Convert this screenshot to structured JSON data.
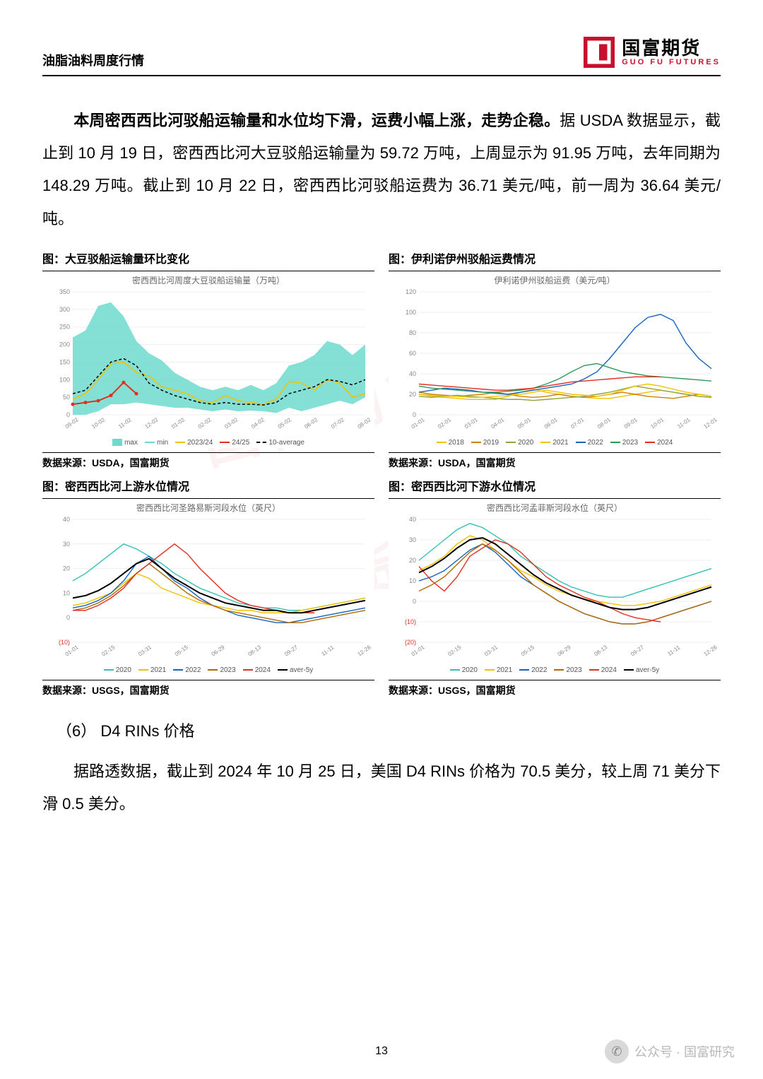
{
  "header": {
    "title": "油脂油料周度行情"
  },
  "logo": {
    "cn": "国富期货",
    "en": "GUO FU FUTURES",
    "color": "#c8102e"
  },
  "para1": {
    "bold": "本周密西西比河驳船运输量和水位均下滑，运费小幅上涨，走势企稳。",
    "rest": "据 USDA 数据显示，截止到 10 月 19 日，密西西比河大豆驳船运输量为 59.72 万吨，上周显示为 91.95 万吨，去年同期为 148.29 万吨。截止到 10 月 22 日，密西西比河驳船运费为 36.71 美元/吨，前一周为 36.64 美元/吨。"
  },
  "charts": {
    "c1": {
      "title": "图：大豆驳船运输量环比变化",
      "subtitle": "密西西比河周度大豆驳船运输量（万吨）",
      "source": "数据来源：USDA，国富期货",
      "type": "area+line",
      "ylim": [
        0,
        350
      ],
      "ystep": 50,
      "xticks": [
        "09-02",
        "10-02",
        "11-02",
        "12-02",
        "01-02",
        "02-02",
        "03-02",
        "04-02",
        "05-02",
        "06-02",
        "07-02",
        "08-02"
      ],
      "colors": {
        "max_fill": "#6fd9cc",
        "min_line": "#6fd9cc",
        "y2023_24": "#f2c200",
        "y2024_25": "#e03020",
        "avg10": "#000000"
      },
      "series": {
        "max": [
          220,
          240,
          310,
          320,
          280,
          210,
          175,
          155,
          120,
          100,
          80,
          70,
          80,
          70,
          85,
          70,
          90,
          140,
          150,
          170,
          210,
          200,
          170,
          200
        ],
        "min": [
          0,
          0,
          10,
          30,
          30,
          35,
          30,
          25,
          20,
          20,
          15,
          10,
          15,
          10,
          12,
          10,
          5,
          20,
          10,
          20,
          30,
          40,
          30,
          50
        ],
        "y2023_24": [
          45,
          60,
          100,
          145,
          150,
          120,
          110,
          80,
          70,
          60,
          40,
          35,
          55,
          40,
          35,
          30,
          45,
          95,
          90,
          70,
          100,
          90,
          50,
          60
        ],
        "y2024_25": [
          30,
          35,
          40,
          55,
          92,
          60
        ],
        "avg10": [
          60,
          70,
          110,
          150,
          160,
          140,
          90,
          70,
          55,
          45,
          35,
          30,
          35,
          30,
          30,
          28,
          35,
          60,
          70,
          80,
          100,
          95,
          85,
          100
        ]
      },
      "legend": [
        {
          "label": "max",
          "style": "box",
          "color": "#6fd9cc"
        },
        {
          "label": "min",
          "style": "line",
          "color": "#6fd9cc"
        },
        {
          "label": "2023/24",
          "style": "line",
          "color": "#f2c200"
        },
        {
          "label": "24/25",
          "style": "dot-line",
          "color": "#e03020"
        },
        {
          "label": "10-average",
          "style": "dash",
          "color": "#000000"
        }
      ]
    },
    "c2": {
      "title": "图：伊利诺伊州驳船运费情况",
      "subtitle": "伊利诺伊州驳船运费（美元/吨）",
      "source": "数据来源：USDA，国富期货",
      "type": "line",
      "ylim": [
        0,
        120
      ],
      "ystep": 20,
      "xticks": [
        "01-01",
        "02-01",
        "03-01",
        "04-01",
        "05-01",
        "06-01",
        "07-01",
        "08-01",
        "09-01",
        "10-01",
        "11-01",
        "12-01"
      ],
      "colors": {
        "2018": "#f2c200",
        "2019": "#cc8400",
        "2020": "#8fa63b",
        "2021": "#f2c200",
        "2022": "#1564c0",
        "2023": "#2e9b5a",
        "2024": "#e03020"
      },
      "series": {
        "2018": [
          20,
          18,
          17,
          16,
          15,
          15,
          15,
          18,
          22,
          25,
          22,
          20,
          18,
          17,
          16,
          16,
          18,
          20,
          22,
          24,
          22,
          20,
          18,
          17
        ],
        "2019": [
          22,
          20,
          19,
          18,
          19,
          20,
          22,
          20,
          18,
          17,
          18,
          20,
          18,
          17,
          18,
          20,
          22,
          20,
          18,
          17,
          16,
          18,
          20,
          18
        ],
        "2020": [
          18,
          17,
          18,
          19,
          18,
          17,
          16,
          15,
          15,
          14,
          15,
          16,
          17,
          18,
          20,
          22,
          25,
          28,
          26,
          24,
          22,
          20,
          18,
          17
        ],
        "2021": [
          20,
          19,
          18,
          18,
          17,
          17,
          18,
          19,
          20,
          22,
          24,
          22,
          20,
          19,
          18,
          20,
          24,
          28,
          30,
          28,
          25,
          22,
          20,
          18
        ],
        "2022": [
          22,
          24,
          26,
          25,
          24,
          22,
          21,
          20,
          22,
          24,
          26,
          28,
          30,
          35,
          42,
          55,
          70,
          85,
          95,
          98,
          92,
          70,
          55,
          45
        ],
        "2023": [
          28,
          26,
          25,
          24,
          23,
          22,
          22,
          23,
          24,
          26,
          30,
          35,
          42,
          48,
          50,
          46,
          42,
          40,
          38,
          37,
          36,
          35,
          34,
          33
        ],
        "2024": [
          30,
          29,
          28,
          27,
          26,
          25,
          24,
          24,
          25,
          26,
          28,
          30,
          32,
          33,
          34,
          35,
          36,
          37,
          37,
          37
        ]
      },
      "legend": [
        {
          "label": "2018",
          "color": "#f2c200"
        },
        {
          "label": "2019",
          "color": "#cc8400"
        },
        {
          "label": "2020",
          "color": "#8fa63b"
        },
        {
          "label": "2021",
          "color": "#f2c200"
        },
        {
          "label": "2022",
          "color": "#1564c0"
        },
        {
          "label": "2023",
          "color": "#2e9b5a"
        },
        {
          "label": "2024",
          "color": "#e03020"
        }
      ]
    },
    "c3": {
      "title": "图：密西西比河上游水位情况",
      "subtitle": "密西西比河圣路易斯河段水位（英尺）",
      "source": "数据来源：USGS，国富期货",
      "type": "line",
      "ylim": [
        -10,
        40
      ],
      "ystep": 10,
      "xticks": [
        "01-01",
        "02-15",
        "03-31",
        "05-15",
        "06-29",
        "08-13",
        "09-27",
        "11-11",
        "12-26"
      ],
      "colors": {
        "2020": "#35c0b5",
        "2021": "#f2c200",
        "2022": "#1564c0",
        "2023": "#b06a00",
        "2024": "#e03020",
        "avg5": "#000000"
      },
      "series": {
        "2020": [
          15,
          18,
          22,
          26,
          30,
          28,
          25,
          22,
          18,
          15,
          12,
          10,
          8,
          6,
          5,
          4,
          4,
          3,
          3,
          4,
          5,
          6,
          7,
          8
        ],
        "2021": [
          5,
          6,
          8,
          10,
          14,
          18,
          16,
          12,
          10,
          8,
          6,
          5,
          4,
          3,
          3,
          2,
          2,
          2,
          3,
          4,
          5,
          6,
          7,
          8
        ],
        "2022": [
          4,
          5,
          7,
          10,
          15,
          22,
          25,
          20,
          15,
          12,
          8,
          5,
          3,
          1,
          0,
          -1,
          -2,
          -2,
          -1,
          0,
          1,
          2,
          3,
          4
        ],
        "2023": [
          3,
          4,
          6,
          9,
          13,
          18,
          22,
          18,
          14,
          10,
          7,
          5,
          3,
          2,
          1,
          0,
          -1,
          -2,
          -2,
          -1,
          0,
          1,
          2,
          3
        ],
        "2024": [
          3,
          3,
          5,
          8,
          12,
          18,
          22,
          26,
          30,
          26,
          20,
          15,
          10,
          7,
          5,
          4,
          3,
          2,
          2,
          2
        ],
        "avg5": [
          8,
          9,
          11,
          14,
          18,
          22,
          24,
          20,
          16,
          13,
          10,
          8,
          6,
          5,
          4,
          3,
          3,
          2,
          2,
          3,
          4,
          5,
          6,
          7
        ]
      },
      "legend": [
        {
          "label": "2020",
          "color": "#35c0b5"
        },
        {
          "label": "2021",
          "color": "#f2c200"
        },
        {
          "label": "2022",
          "color": "#1564c0"
        },
        {
          "label": "2023",
          "color": "#b06a00"
        },
        {
          "label": "2024",
          "color": "#e03020"
        },
        {
          "label": "aver-5y",
          "color": "#000000"
        }
      ]
    },
    "c4": {
      "title": "图：密西西比河下游水位情况",
      "subtitle": "密西西比河孟菲斯河段水位（英尺）",
      "source": "数据来源：USGS，国富期货",
      "type": "line",
      "ylim": [
        -20,
        40
      ],
      "ystep": 10,
      "xticks": [
        "01-01",
        "02-15",
        "03-31",
        "05-15",
        "06-29",
        "08-13",
        "09-27",
        "11-11",
        "12-26"
      ],
      "colors": {
        "2020": "#35c0b5",
        "2021": "#f2c200",
        "2022": "#1564c0",
        "2023": "#b06a00",
        "2024": "#e03020",
        "avg5": "#000000"
      },
      "series": {
        "2020": [
          20,
          25,
          30,
          35,
          38,
          36,
          32,
          28,
          22,
          18,
          14,
          10,
          7,
          5,
          3,
          2,
          2,
          4,
          6,
          8,
          10,
          12,
          14,
          16
        ],
        "2021": [
          15,
          18,
          22,
          28,
          32,
          30,
          25,
          20,
          15,
          12,
          8,
          5,
          3,
          1,
          0,
          -1,
          -2,
          -2,
          -1,
          0,
          2,
          4,
          6,
          8
        ],
        "2022": [
          10,
          12,
          15,
          20,
          25,
          28,
          24,
          18,
          12,
          8,
          4,
          0,
          -3,
          -6,
          -8,
          -10,
          -11,
          -11,
          -10,
          -8,
          -6,
          -4,
          -2,
          0
        ],
        "2023": [
          5,
          8,
          12,
          18,
          24,
          28,
          25,
          20,
          14,
          8,
          4,
          0,
          -3,
          -6,
          -8,
          -10,
          -11,
          -11,
          -10,
          -8,
          -6,
          -4,
          -2,
          0
        ],
        "2024": [
          17,
          10,
          5,
          12,
          22,
          26,
          30,
          28,
          24,
          18,
          12,
          8,
          5,
          2,
          0,
          -3,
          -6,
          -8,
          -9,
          -10
        ],
        "avg5": [
          14,
          17,
          21,
          26,
          30,
          31,
          28,
          23,
          18,
          13,
          9,
          6,
          3,
          1,
          -1,
          -3,
          -4,
          -4,
          -3,
          -1,
          1,
          3,
          5,
          7
        ]
      },
      "legend": [
        {
          "label": "2020",
          "color": "#35c0b5"
        },
        {
          "label": "2021",
          "color": "#f2c200"
        },
        {
          "label": "2022",
          "color": "#1564c0"
        },
        {
          "label": "2023",
          "color": "#b06a00"
        },
        {
          "label": "2024",
          "color": "#e03020"
        },
        {
          "label": "aver-5y",
          "color": "#000000"
        }
      ]
    }
  },
  "section6": {
    "heading": "（6） D4 RINs 价格"
  },
  "para2": "据路透数据，截止到 2024 年 10 月 25 日，美国 D4 RINs 价格为 70.5 美分，较上周 71 美分下滑 0.5 美分。",
  "page_number": "13",
  "footer_brand": "公众号 · 国富研究",
  "watermark": "国富期货"
}
